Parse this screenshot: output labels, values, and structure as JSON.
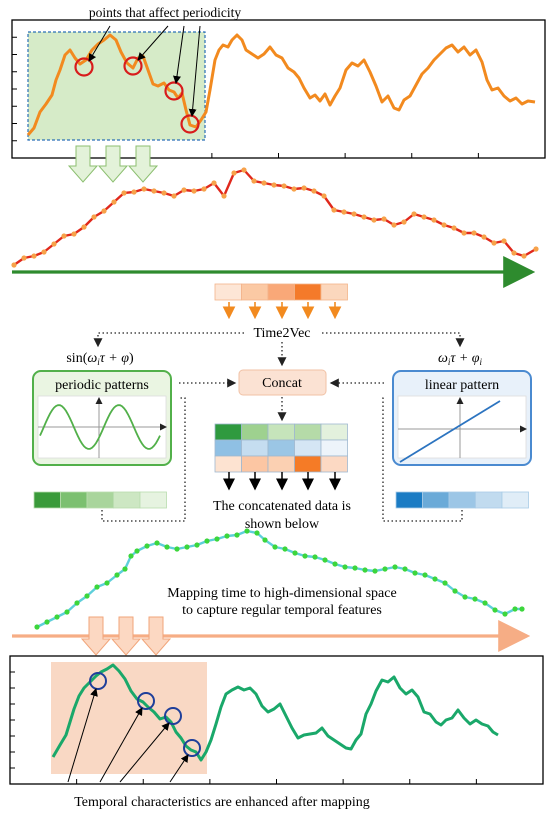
{
  "top_panel": {
    "annotation": "points that affect periodicity"
  },
  "time2vec": {
    "label": "Time2Vec",
    "sin_formula": "sin(ω_iτ + φ)",
    "linear_formula": "ω_iτ + φ_i",
    "periodic_title": "periodic patterns",
    "linear_title": "linear pattern",
    "concat_label": "Concat",
    "concat_caption_line1": "The concatenated data is",
    "concat_caption_line2": "shown below"
  },
  "mapping": {
    "line1": "Mapping time to high-dimensional space",
    "line2": "to capture regular temporal features"
  },
  "bottom_panel": {
    "caption": "Temporal characteristics are enhanced after mapping"
  },
  "colors": {
    "orange_series": "#f28a1f",
    "red_series": "#e0281c",
    "dot_orange": "#f7a24a",
    "green_arrow": "#2e8b2e",
    "green_line": "#1aa86a",
    "blue_circle": "#1f3f9a",
    "salmon_arrow": "#f6ad85",
    "periodic_green": "#52b04a",
    "linear_blue": "#2c74c0",
    "highlight_green": "#d6ebc8",
    "highlight_salmon": "#f9d8c4"
  },
  "vector_cells": {
    "top_orange": [
      "#fde6d6",
      "#fbc9a4",
      "#f9a878",
      "#f47a2a",
      "#fbd7bd"
    ],
    "green_vector": [
      "#3a9a3a",
      "#7cc070",
      "#a9d59c",
      "#cde7c3",
      "#e6f3e0"
    ],
    "blue_vector": [
      "#1b7cc4",
      "#6aaad8",
      "#9cc6e6",
      "#c1dbef",
      "#e0edf7"
    ],
    "concat_rows": [
      [
        "#2f9a3f",
        "#9ed18f",
        "#c6e4bb",
        "#b5dba8",
        "#e3f1dd"
      ],
      [
        "#8fc0e4",
        "#c5ddf0",
        "#9bc6e5",
        "#d5e6f4",
        "#edf4fa"
      ],
      [
        "#fde3d1",
        "#fcc6a3",
        "#fbd0b2",
        "#f57b26",
        "#fcd9c3"
      ]
    ]
  }
}
